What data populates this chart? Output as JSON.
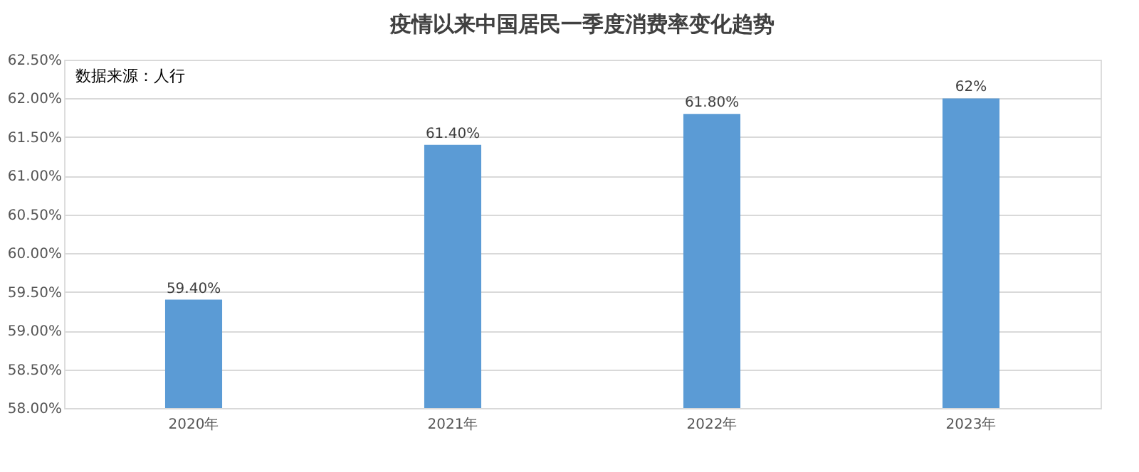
{
  "chart_data": {
    "type": "bar",
    "title": "疫情以来中国居民一季度消费率变化趋势",
    "categories": [
      "2020年",
      "2021年",
      "2022年",
      "2023年"
    ],
    "values": [
      59.4,
      61.4,
      61.8,
      62
    ],
    "value_labels": [
      "59.40%",
      "61.40%",
      "61.80%",
      "62%"
    ],
    "color": "#5b9bd5",
    "ylim": [
      58,
      62.5
    ],
    "yticks": [
      {
        "value": 58,
        "label": "58.00%"
      },
      {
        "value": 58.5,
        "label": "58.50%"
      },
      {
        "value": 59,
        "label": "59.00%"
      },
      {
        "value": 59.5,
        "label": "59.50%"
      },
      {
        "value": 60,
        "label": "60.00%"
      },
      {
        "value": 60.5,
        "label": "60.50%"
      },
      {
        "value": 61,
        "label": "61.00%"
      },
      {
        "value": 61.5,
        "label": "61.50%"
      },
      {
        "value": 62,
        "label": "62.00%"
      },
      {
        "value": 62.5,
        "label": "62.50%"
      }
    ],
    "grid": "y",
    "annotations": [
      "数据来源：人行"
    ]
  }
}
